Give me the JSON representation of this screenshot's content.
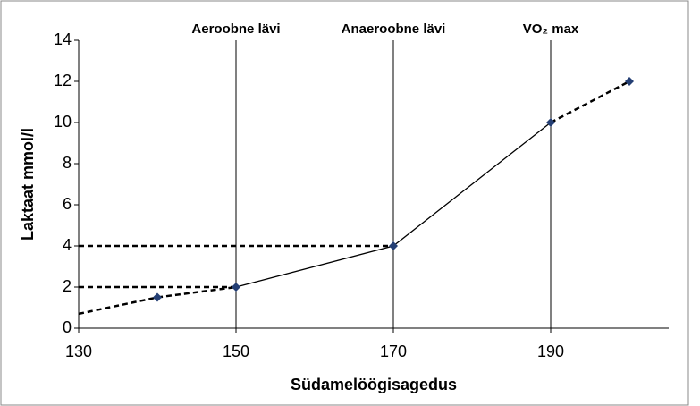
{
  "chart_data": {
    "type": "line",
    "xlabel": "Südamelöögisagedus",
    "ylabel": "Laktaat mmol/l",
    "xlim": [
      130,
      205
    ],
    "ylim": [
      0,
      14
    ],
    "xticks": [
      130,
      150,
      170,
      190
    ],
    "yticks": [
      0,
      2,
      4,
      6,
      8,
      10,
      12,
      14
    ],
    "grid": false,
    "marker_color": "#243f74",
    "line_color": "#000000",
    "x": [
      140,
      150,
      170,
      190,
      200
    ],
    "values": [
      1.5,
      2,
      4,
      10,
      12
    ],
    "lines": [
      {
        "x": [
          130,
          140,
          150
        ],
        "values": [
          0.7,
          1.5,
          2
        ],
        "style": "dashed"
      },
      {
        "x": [
          150,
          170,
          190
        ],
        "values": [
          2,
          4,
          10
        ],
        "style": "solid"
      },
      {
        "x": [
          190,
          200
        ],
        "values": [
          10,
          12
        ],
        "style": "dashed"
      },
      {
        "x": [
          130,
          150
        ],
        "values": [
          2,
          2
        ],
        "style": "dashed"
      },
      {
        "x": [
          130,
          170
        ],
        "values": [
          4,
          4
        ],
        "style": "dashed"
      }
    ],
    "vlines": [
      {
        "x": 150,
        "label": "Aeroobne lävi"
      },
      {
        "x": 170,
        "label": "Anaeroobne lävi"
      },
      {
        "x": 190,
        "label": "VO₂ max"
      }
    ]
  }
}
